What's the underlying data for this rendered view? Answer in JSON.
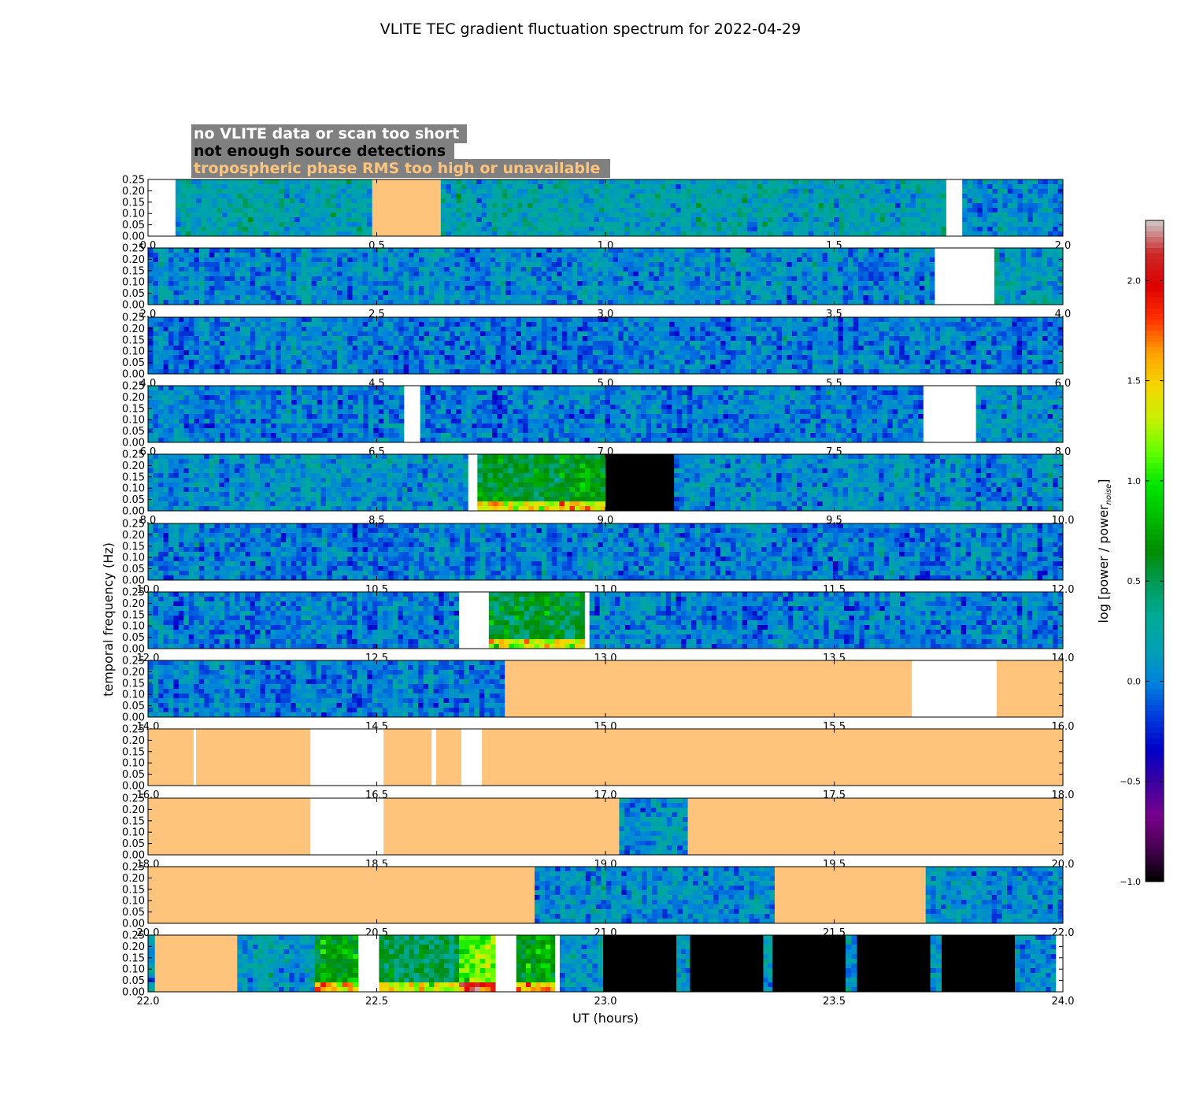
{
  "chart_data": {
    "type": "heatmap",
    "title": "VLITE TEC gradient fluctuation spectrum for 2022-04-29",
    "xlabel": "UT (hours)",
    "ylabel": "temporal frequency (Hz)",
    "colorbar_label": "log [power / power_noise]",
    "colorbar_label_main": "log [power / power",
    "colorbar_label_sub": "noise",
    "colorbar_label_end": "]",
    "colorbar_range": [
      -1.0,
      2.3
    ],
    "colorbar_ticks": [
      "-1.0",
      "-0.5",
      "0.0",
      "0.5",
      "1.0",
      "1.5",
      "2.0"
    ],
    "colormap": "nipy_spectral",
    "ylim": [
      0.0,
      0.25
    ],
    "y_ticks": [
      "0.00",
      "0.05",
      "0.10",
      "0.15",
      "0.20",
      "0.25"
    ],
    "legend": [
      {
        "label": "no VLITE data or scan too short",
        "status": "nodata",
        "color": "#ffffff"
      },
      {
        "label": "not enough source detections",
        "status": "nodet",
        "color": "#000000"
      },
      {
        "label": "tropospheric phase RMS too high or unavailable",
        "status": "trop",
        "color": "#ffc47c"
      }
    ],
    "legend_box_color": "#808080",
    "status_colors": {
      "nodata": "#ffffff",
      "nodet": "#000000",
      "trop": "#ffc47c"
    },
    "panels": [
      {
        "xlim": [
          0,
          2
        ],
        "x_ticks": [
          "0.0",
          "0.5",
          "1.0",
          "1.5",
          "2.0"
        ],
        "segments": [
          {
            "start": 0.0,
            "end": 0.06,
            "status": "nodata"
          },
          {
            "start": 0.06,
            "end": 0.49,
            "status": "data",
            "level": 0.2
          },
          {
            "start": 0.49,
            "end": 0.64,
            "status": "trop"
          },
          {
            "start": 0.64,
            "end": 1.745,
            "status": "data",
            "level": 0.2
          },
          {
            "start": 1.745,
            "end": 1.78,
            "status": "nodata"
          },
          {
            "start": 1.78,
            "end": 2.0,
            "status": "data",
            "level": 0.05
          }
        ]
      },
      {
        "xlim": [
          2,
          4
        ],
        "x_ticks": [
          "2.0",
          "2.5",
          "3.0",
          "3.5",
          "4.0"
        ],
        "segments": [
          {
            "start": 2.0,
            "end": 3.72,
            "status": "data",
            "level": 0.05
          },
          {
            "start": 3.72,
            "end": 3.85,
            "status": "nodata"
          },
          {
            "start": 3.85,
            "end": 4.0,
            "status": "data",
            "level": 0.2
          }
        ]
      },
      {
        "xlim": [
          4,
          6
        ],
        "x_ticks": [
          "4.0",
          "4.5",
          "5.0",
          "5.5",
          "6.0"
        ],
        "segments": [
          {
            "start": 4.0,
            "end": 6.0,
            "status": "data",
            "level": 0.0
          }
        ]
      },
      {
        "xlim": [
          6,
          8
        ],
        "x_ticks": [
          "6.0",
          "6.5",
          "7.0",
          "7.5",
          "8.0"
        ],
        "segments": [
          {
            "start": 6.0,
            "end": 6.56,
            "status": "data",
            "level": 0.0
          },
          {
            "start": 6.56,
            "end": 6.595,
            "status": "nodata"
          },
          {
            "start": 6.595,
            "end": 7.695,
            "status": "data",
            "level": 0.0
          },
          {
            "start": 7.695,
            "end": 7.81,
            "status": "nodata"
          },
          {
            "start": 7.81,
            "end": 8.0,
            "status": "data",
            "level": 0.1
          }
        ]
      },
      {
        "xlim": [
          8,
          10
        ],
        "x_ticks": [
          "8.0",
          "8.5",
          "9.0",
          "9.5",
          "10.0"
        ],
        "segments": [
          {
            "start": 8.0,
            "end": 8.7,
            "status": "data",
            "level": 0.1
          },
          {
            "start": 8.7,
            "end": 8.72,
            "status": "nodata"
          },
          {
            "start": 8.72,
            "end": 9.0,
            "status": "data",
            "level": 0.6
          },
          {
            "start": 9.0,
            "end": 9.15,
            "status": "nodet"
          },
          {
            "start": 9.15,
            "end": 10.0,
            "status": "data",
            "level": 0.05
          }
        ]
      },
      {
        "xlim": [
          10,
          12
        ],
        "x_ticks": [
          "10.0",
          "10.5",
          "11.0",
          "11.5",
          "12.0"
        ],
        "segments": [
          {
            "start": 10.0,
            "end": 12.0,
            "status": "data",
            "level": 0.0
          }
        ]
      },
      {
        "xlim": [
          12,
          14
        ],
        "x_ticks": [
          "12.0",
          "12.5",
          "13.0",
          "13.5",
          "14.0"
        ],
        "segments": [
          {
            "start": 12.0,
            "end": 12.68,
            "status": "data",
            "level": 0.0
          },
          {
            "start": 12.68,
            "end": 12.745,
            "status": "nodata"
          },
          {
            "start": 12.745,
            "end": 12.955,
            "status": "data",
            "level": 0.55
          },
          {
            "start": 12.955,
            "end": 12.965,
            "status": "nodata"
          },
          {
            "start": 12.965,
            "end": 14.0,
            "status": "data",
            "level": 0.0
          }
        ]
      },
      {
        "xlim": [
          14,
          16
        ],
        "x_ticks": [
          "14.0",
          "14.5",
          "15.0",
          "15.5",
          "16.0"
        ],
        "segments": [
          {
            "start": 14.0,
            "end": 14.78,
            "status": "data",
            "level": 0.0
          },
          {
            "start": 14.78,
            "end": 15.67,
            "status": "trop"
          },
          {
            "start": 15.67,
            "end": 15.855,
            "status": "nodata"
          },
          {
            "start": 15.855,
            "end": 16.0,
            "status": "trop"
          }
        ]
      },
      {
        "xlim": [
          16,
          18
        ],
        "x_ticks": [
          "16.0",
          "16.5",
          "17.0",
          "17.5",
          "18.0"
        ],
        "segments": [
          {
            "start": 16.0,
            "end": 16.1,
            "status": "trop"
          },
          {
            "start": 16.1,
            "end": 16.105,
            "status": "nodata"
          },
          {
            "start": 16.105,
            "end": 16.355,
            "status": "trop"
          },
          {
            "start": 16.355,
            "end": 16.515,
            "status": "nodata"
          },
          {
            "start": 16.515,
            "end": 16.62,
            "status": "trop"
          },
          {
            "start": 16.62,
            "end": 16.63,
            "status": "nodata"
          },
          {
            "start": 16.63,
            "end": 16.685,
            "status": "trop"
          },
          {
            "start": 16.685,
            "end": 16.73,
            "status": "nodata"
          },
          {
            "start": 16.73,
            "end": 18.0,
            "status": "trop"
          }
        ]
      },
      {
        "xlim": [
          18,
          20
        ],
        "x_ticks": [
          "18.0",
          "18.5",
          "19.0",
          "19.5",
          "20.0"
        ],
        "segments": [
          {
            "start": 18.0,
            "end": 18.355,
            "status": "trop"
          },
          {
            "start": 18.355,
            "end": 18.515,
            "status": "nodata"
          },
          {
            "start": 18.515,
            "end": 19.03,
            "status": "trop"
          },
          {
            "start": 19.03,
            "end": 19.18,
            "status": "data",
            "level": 0.05
          },
          {
            "start": 19.18,
            "end": 20.0,
            "status": "trop"
          }
        ]
      },
      {
        "xlim": [
          20,
          22
        ],
        "x_ticks": [
          "20.0",
          "20.5",
          "21.0",
          "21.5",
          "22.0"
        ],
        "segments": [
          {
            "start": 20.0,
            "end": 20.845,
            "status": "trop"
          },
          {
            "start": 20.845,
            "end": 21.37,
            "status": "data",
            "level": 0.05
          },
          {
            "start": 21.37,
            "end": 21.7,
            "status": "trop"
          },
          {
            "start": 21.7,
            "end": 22.0,
            "status": "data",
            "level": 0.05
          }
        ]
      },
      {
        "xlim": [
          22,
          24
        ],
        "x_ticks": [
          "22.0",
          "22.5",
          "23.0",
          "23.5",
          "24.0"
        ],
        "segments": [
          {
            "start": 22.0,
            "end": 22.015,
            "status": "data",
            "level": 0.1
          },
          {
            "start": 22.015,
            "end": 22.195,
            "status": "trop"
          },
          {
            "start": 22.195,
            "end": 22.365,
            "status": "data",
            "level": 0.1
          },
          {
            "start": 22.365,
            "end": 22.46,
            "status": "data",
            "level": 0.7
          },
          {
            "start": 22.46,
            "end": 22.505,
            "status": "nodata"
          },
          {
            "start": 22.505,
            "end": 22.68,
            "status": "data",
            "level": 0.45
          },
          {
            "start": 22.68,
            "end": 22.76,
            "status": "data",
            "level": 1.1
          },
          {
            "start": 22.76,
            "end": 22.805,
            "status": "nodata"
          },
          {
            "start": 22.805,
            "end": 22.89,
            "status": "data",
            "level": 0.7
          },
          {
            "start": 22.89,
            "end": 22.9,
            "status": "nodata"
          },
          {
            "start": 22.9,
            "end": 22.995,
            "status": "data",
            "level": 0.1
          },
          {
            "start": 22.995,
            "end": 23.155,
            "status": "nodet"
          },
          {
            "start": 23.155,
            "end": 23.185,
            "status": "data",
            "level": 0.1
          },
          {
            "start": 23.185,
            "end": 23.345,
            "status": "nodet"
          },
          {
            "start": 23.345,
            "end": 23.365,
            "status": "data",
            "level": 0.1
          },
          {
            "start": 23.365,
            "end": 23.525,
            "status": "nodet"
          },
          {
            "start": 23.525,
            "end": 23.55,
            "status": "data",
            "level": 0.1
          },
          {
            "start": 23.55,
            "end": 23.71,
            "status": "nodet"
          },
          {
            "start": 23.71,
            "end": 23.735,
            "status": "data",
            "level": 0.1
          },
          {
            "start": 23.735,
            "end": 23.895,
            "status": "nodet"
          },
          {
            "start": 23.895,
            "end": 23.985,
            "status": "data",
            "level": 0.05
          },
          {
            "start": 23.985,
            "end": 24.0,
            "status": "nodata"
          }
        ]
      }
    ]
  }
}
